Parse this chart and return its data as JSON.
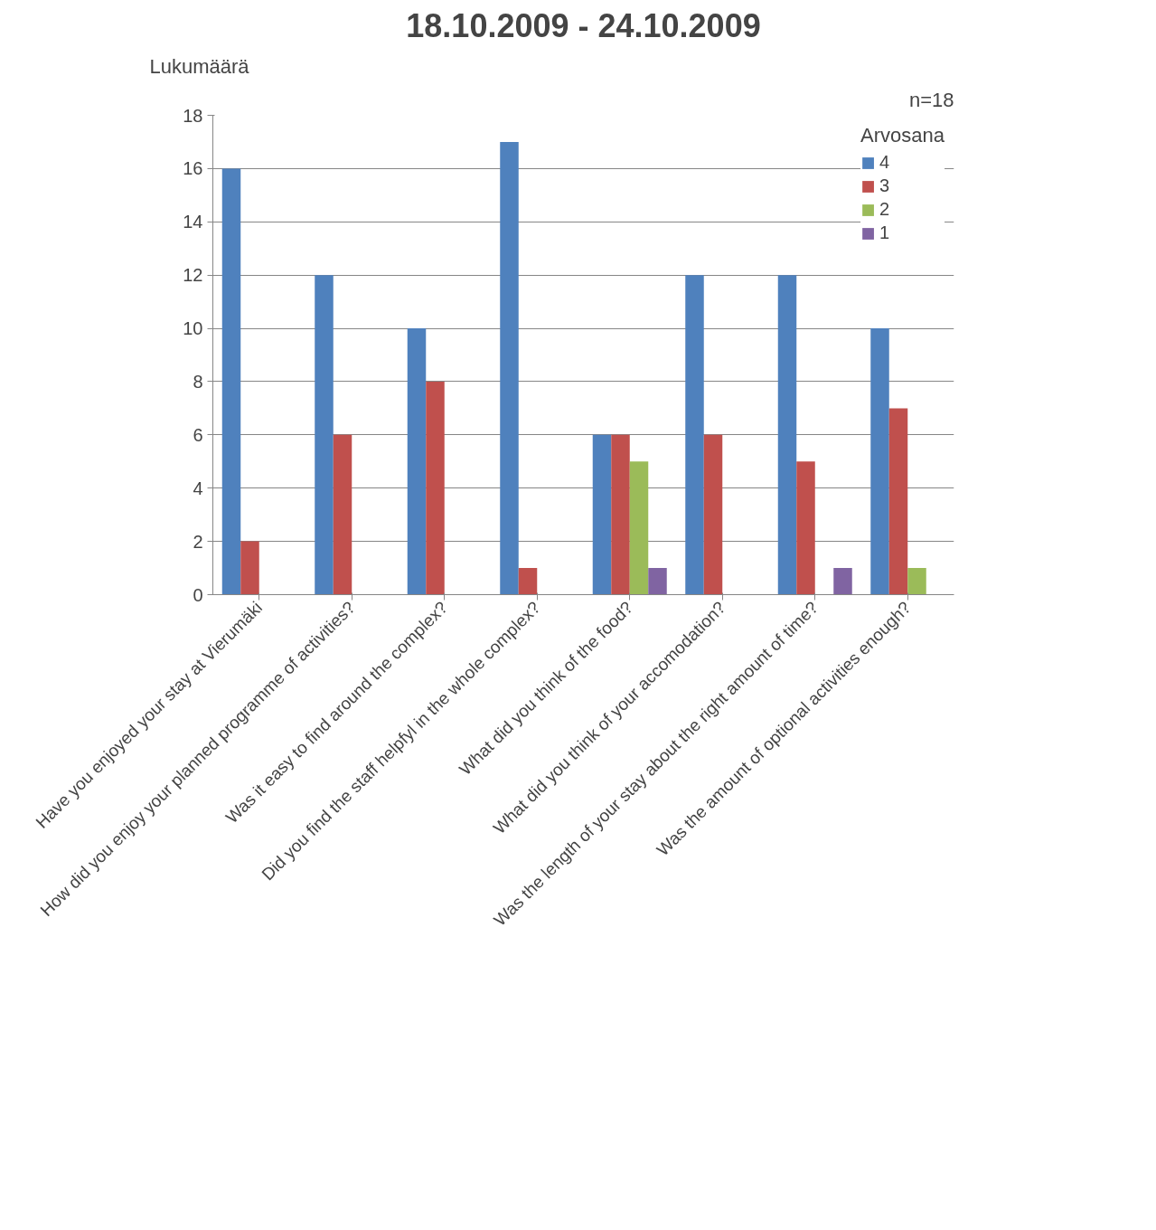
{
  "chart_data": {
    "type": "bar",
    "title": "18.10.2009 - 24.10.2009",
    "ylabel": "Lukumäärä",
    "legend_title": "Arvosana",
    "annotations": [
      "n=18"
    ],
    "categories": [
      "Have you enjoyed your stay at Vierumäki",
      "How did you enjoy your planned programme of activities?",
      "Was it easy to find around the complex?",
      "Did you find the staff helpfyl in the whole complex?",
      "What did you think of the food?",
      "What did you think of your accomodation?",
      "Was the length of your stay about the right amount of time?",
      "Was the amount of optional activities enough?"
    ],
    "series": [
      {
        "name": "4",
        "color": "#4f81bd",
        "values": [
          16,
          12,
          10,
          17,
          6,
          12,
          12,
          10
        ]
      },
      {
        "name": "3",
        "color": "#c0504d",
        "values": [
          2,
          6,
          8,
          1,
          6,
          6,
          5,
          7
        ]
      },
      {
        "name": "2",
        "color": "#9bbb59",
        "values": [
          0,
          0,
          0,
          0,
          5,
          0,
          0,
          1
        ]
      },
      {
        "name": "1",
        "color": "#8064a2",
        "values": [
          0,
          0,
          0,
          0,
          1,
          0,
          1,
          0
        ]
      }
    ],
    "ylim": [
      0,
      18
    ],
    "yticks": [
      0,
      2,
      4,
      6,
      8,
      10,
      12,
      14,
      16,
      18
    ],
    "grid": "y",
    "legend": "right"
  }
}
